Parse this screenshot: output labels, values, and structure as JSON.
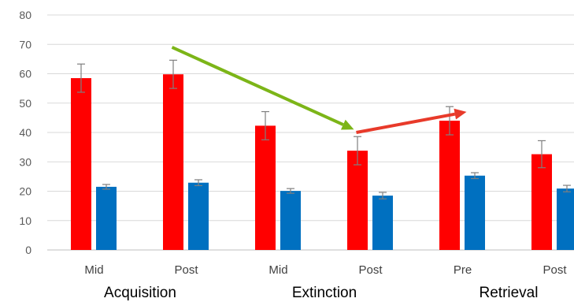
{
  "chart_data": {
    "type": "bar",
    "ylim": [
      0,
      80
    ],
    "yticks": [
      0,
      10,
      20,
      30,
      40,
      50,
      60,
      70,
      80
    ],
    "grid": true,
    "legend": "none",
    "categories": [
      "Mid",
      "Post",
      "Mid",
      "Post",
      "Pre",
      "Post"
    ],
    "groups": [
      {
        "label": "Acquisition",
        "categories": [
          0,
          1
        ]
      },
      {
        "label": "Extinction",
        "categories": [
          2,
          3
        ]
      },
      {
        "label": "Retrieval",
        "categories": [
          4,
          5
        ]
      }
    ],
    "series": [
      {
        "color": "#ff0000",
        "values": [
          58.5,
          59.8,
          42.3,
          33.8,
          44.0,
          32.6
        ],
        "errors": [
          4.8,
          4.8,
          4.8,
          4.8,
          4.8,
          4.6
        ]
      },
      {
        "color": "#0070c0",
        "values": [
          21.5,
          22.9,
          20.1,
          18.5,
          25.3,
          20.9
        ],
        "errors": [
          0.8,
          1.0,
          0.8,
          1.1,
          1.0,
          1.1
        ]
      }
    ],
    "annotations": [
      {
        "type": "arrow",
        "color": "#7cb518",
        "from": {
          "category": 1,
          "y": 69
        },
        "to": {
          "category": 3,
          "y": 41
        }
      },
      {
        "type": "arrow",
        "color": "#e83a2a",
        "from": {
          "category": 3,
          "y": 40
        },
        "to": {
          "category": 4,
          "y": 47
        }
      }
    ]
  }
}
